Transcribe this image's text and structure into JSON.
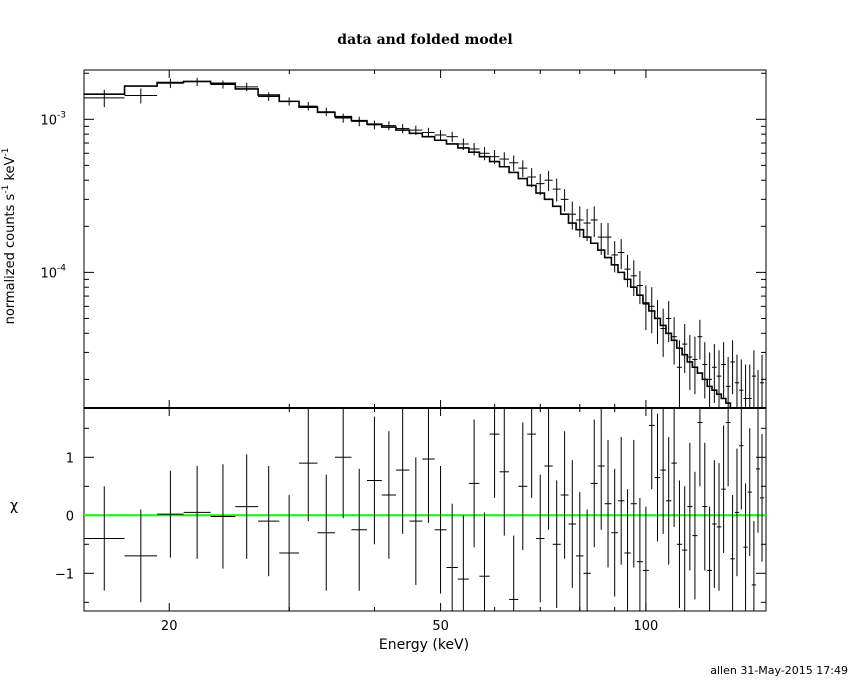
{
  "title": "data and folded model",
  "footer": "allen 31-May-2015 17:49",
  "chart_data": [
    {
      "type": "line",
      "panel": "spectrum",
      "ylabel_main": "normalized counts s",
      "ylabel_exp1": "-1",
      "ylabel_mid": " keV",
      "ylabel_exp2": "-1",
      "xscale": "log",
      "yscale": "log",
      "xlim": [
        15,
        150
      ],
      "ylim": [
        1.3e-05,
        0.0021
      ],
      "yticks": [
        {
          "value": 0.001,
          "base": "10",
          "exp": "-3"
        },
        {
          "value": 0.0001,
          "base": "10",
          "exp": "-4"
        }
      ],
      "series": [
        {
          "name": "data",
          "bins": [
            [
              15,
              17.2
            ],
            [
              17.2,
              19.2
            ],
            [
              19.2,
              21
            ],
            [
              21,
              23
            ],
            [
              23,
              25
            ],
            [
              25,
              27
            ],
            [
              27,
              29
            ],
            [
              29,
              31
            ],
            [
              31,
              33
            ],
            [
              33,
              35
            ],
            [
              35,
              37
            ],
            [
              37,
              39
            ],
            [
              39,
              41
            ],
            [
              41,
              43
            ],
            [
              43,
              45
            ],
            [
              45,
              47
            ],
            [
              47,
              49
            ],
            [
              49,
              51
            ],
            [
              51,
              53
            ],
            [
              53,
              55
            ],
            [
              55,
              57
            ],
            [
              57,
              59
            ],
            [
              59,
              61
            ],
            [
              61,
              63
            ],
            [
              63,
              65
            ],
            [
              65,
              67
            ],
            [
              67,
              69
            ],
            [
              69,
              71
            ],
            [
              71,
              73
            ],
            [
              73,
              75
            ],
            [
              75,
              77
            ],
            [
              77,
              79
            ],
            [
              79,
              81
            ],
            [
              81,
              83
            ],
            [
              83,
              85
            ],
            [
              85,
              87
            ],
            [
              87,
              89
            ],
            [
              89,
              91
            ],
            [
              91,
              93
            ],
            [
              93,
              95
            ],
            [
              95,
              97
            ],
            [
              97,
              99
            ],
            [
              99,
              101
            ],
            [
              101,
              103
            ],
            [
              103,
              105
            ],
            [
              105,
              107
            ],
            [
              107,
              109
            ],
            [
              109,
              111
            ],
            [
              111,
              113
            ],
            [
              113,
              115
            ],
            [
              115,
              117
            ],
            [
              117,
              119
            ],
            [
              119,
              121
            ],
            [
              121,
              123
            ],
            [
              123,
              125
            ],
            [
              125,
              127
            ],
            [
              127,
              129
            ],
            [
              129,
              131
            ],
            [
              131,
              133
            ],
            [
              133,
              135
            ],
            [
              135,
              137
            ],
            [
              137,
              139
            ],
            [
              139,
              141
            ],
            [
              141,
              143
            ],
            [
              143,
              145
            ],
            [
              145,
              147
            ],
            [
              147,
              149
            ]
          ],
          "values": [
            0.00138,
            0.00143,
            0.00172,
            0.00176,
            0.00169,
            0.00163,
            0.00141,
            0.00131,
            0.00122,
            0.00112,
            0.00102,
            0.00097,
            0.00092,
            0.00091,
            0.00087,
            0.00085,
            0.00082,
            0.00079,
            0.00077,
            0.00069,
            0.00064,
            0.0006,
            0.00057,
            0.00055,
            0.00052,
            0.00048,
            0.00042,
            0.00038,
            0.0004,
            0.00035,
            0.0003,
            0.00024,
            0.00022,
            0.00021,
            0.00022,
            0.00017,
            0.00017,
            0.00013,
            0.000135,
            0.000105,
            9.5e-05,
            8.2e-05,
            6.2e-05,
            6e-05,
            5e-05,
            4.3e-05,
            5e-05,
            3.8e-05,
            2.4e-05,
            3.4e-05,
            2.8e-05,
            2.7e-05,
            3.8e-05,
            2.5e-05,
            2e-05,
            2.4e-05,
            2.1e-05,
            2.5e-05,
            1.8e-05,
            2.6e-05,
            1.9e-05,
            1.7e-05,
            1.5e-05,
            1.5e-05,
            2.1e-05,
            1.3e-05,
            1.9e-05
          ],
          "errors": [
            0.00018,
            0.00016,
            0.00012,
            0.00011,
            0.0001,
            0.0001,
            9e-05,
            8e-05,
            8e-05,
            7e-05,
            7e-05,
            7e-05,
            6e-05,
            6e-05,
            6e-05,
            6e-05,
            6e-05,
            6e-05,
            6e-05,
            6e-05,
            6e-05,
            6e-05,
            6e-05,
            6e-05,
            6e-05,
            6e-05,
            6e-05,
            6e-05,
            6e-05,
            6e-05,
            5e-05,
            5e-05,
            5e-05,
            5e-05,
            5e-05,
            4e-05,
            4e-05,
            3e-05,
            3e-05,
            2.5e-05,
            2.5e-05,
            2e-05,
            2e-05,
            2e-05,
            1.6e-05,
            1.5e-05,
            1.5e-05,
            1.3e-05,
            1.2e-05,
            1.2e-05,
            1.1e-05,
            1.1e-05,
            1.1e-05,
            1e-05,
            1e-05,
            1e-05,
            1e-05,
            1e-05,
            1e-05,
            1e-05,
            1e-05,
            1e-05,
            1e-05,
            1e-05,
            1e-05,
            1e-05,
            1e-05
          ]
        },
        {
          "name": "model",
          "edges": [
            15,
            17.2,
            19.2,
            21,
            23,
            25,
            27,
            29,
            31,
            33,
            35,
            37,
            39,
            41,
            43,
            45,
            47,
            49,
            51,
            53,
            55,
            57,
            59,
            61,
            63,
            65,
            67,
            69,
            71,
            73,
            75,
            77,
            79,
            81,
            83,
            85,
            87,
            89,
            91,
            93,
            95,
            97,
            99,
            101,
            103,
            105,
            107,
            109,
            111,
            113,
            115,
            117,
            119,
            121,
            123,
            125,
            127,
            129,
            131,
            133,
            135,
            137,
            139,
            141,
            143,
            145,
            147,
            149
          ],
          "values": [
            0.00146,
            0.00165,
            0.00174,
            0.00177,
            0.00172,
            0.00158,
            0.00144,
            0.00131,
            0.0012,
            0.00111,
            0.00104,
            0.00098,
            0.00093,
            0.00089,
            0.00085,
            0.00081,
            0.00077,
            0.00073,
            0.00069,
            0.00065,
            0.00061,
            0.00057,
            0.00053,
            0.00049,
            0.00045,
            0.00041,
            0.00037,
            0.00033,
            0.0003,
            0.00027,
            0.00024,
            0.00021,
            0.00019,
            0.00017,
            0.000155,
            0.00014,
            0.000125,
            0.000112,
            0.0001,
            9e-05,
            8e-05,
            7.1e-05,
            6.3e-05,
            5.6e-05,
            5e-05,
            4.5e-05,
            4e-05,
            3.6e-05,
            3.2e-05,
            2.9e-05,
            2.6e-05,
            2.4e-05,
            2.2e-05,
            2e-05,
            1.8e-05,
            1.7e-05,
            1.6e-05,
            1.5e-05,
            1.4e-05,
            1.3e-05,
            1.3e-05,
            1.3e-05,
            1.3e-05,
            1.3e-05,
            1.3e-05,
            1.3e-05,
            1.3e-05
          ]
        }
      ]
    },
    {
      "type": "scatter",
      "panel": "residuals",
      "ylabel": "χ",
      "xlabel": "Energy (keV)",
      "xscale": "log",
      "xlim": [
        15,
        150
      ],
      "ylim": [
        -1.65,
        1.85
      ],
      "xticks": [
        {
          "value": 20,
          "label": "20"
        },
        {
          "value": 50,
          "label": "50"
        },
        {
          "value": 100,
          "label": "100"
        }
      ],
      "yticks": [
        {
          "value": -1,
          "label": "−1"
        },
        {
          "value": 0,
          "label": "0"
        },
        {
          "value": 1,
          "label": "1"
        }
      ],
      "zero_line_color": "#00ff00",
      "series": [
        {
          "name": "residuals",
          "values": [
            -0.4,
            -0.7,
            0.02,
            0.05,
            -0.02,
            0.15,
            -0.1,
            -0.65,
            0.9,
            -0.3,
            1.0,
            -0.25,
            0.6,
            0.35,
            0.78,
            -0.1,
            0.97,
            -0.25,
            -0.9,
            -1.1,
            0.55,
            -1.05,
            1.4,
            0.75,
            -1.45,
            0.5,
            1.4,
            -0.4,
            0.85,
            -0.5,
            0.35,
            -0.15,
            -0.7,
            -1.0,
            0.55,
            0.85,
            0.2,
            -0.3,
            0.25,
            -0.65,
            0.2,
            -0.8,
            -0.95,
            1.55,
            0.65,
            0.78,
            0.25,
            0.9,
            -0.5,
            -0.6,
            0.15,
            -0.35,
            1.6,
            0.15,
            -0.95,
            -0.15,
            -0.2,
            0.45,
            1.6,
            -0.75,
            0.05,
            1.2,
            -0.55,
            0.4,
            -1.2,
            0.8,
            0.3
          ],
          "errors": [
            0.9,
            0.8,
            0.75,
            0.8,
            0.9,
            0.9,
            0.95,
            1.0,
            1.0,
            1.0,
            1.05,
            1.05,
            1.1,
            1.1,
            1.1,
            1.1,
            1.1,
            1.1,
            1.1,
            1.1,
            1.1,
            1.1,
            1.1,
            1.1,
            1.1,
            1.1,
            1.1,
            1.1,
            1.1,
            1.1,
            1.1,
            1.1,
            1.1,
            1.1,
            1.1,
            1.1,
            1.1,
            1.1,
            1.1,
            1.1,
            1.1,
            1.1,
            1.1,
            1.1,
            1.1,
            1.1,
            1.1,
            1.1,
            1.1,
            1.1,
            1.1,
            1.1,
            1.1,
            1.1,
            1.1,
            1.1,
            1.1,
            1.1,
            1.1,
            1.1,
            1.1,
            1.1,
            1.1,
            1.1,
            1.1,
            1.1,
            1.1
          ]
        }
      ]
    }
  ]
}
